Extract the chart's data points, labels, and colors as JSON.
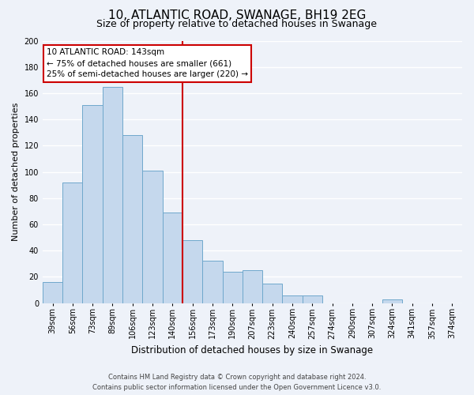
{
  "title": "10, ATLANTIC ROAD, SWANAGE, BH19 2EG",
  "subtitle": "Size of property relative to detached houses in Swanage",
  "xlabel": "Distribution of detached houses by size in Swanage",
  "ylabel": "Number of detached properties",
  "categories": [
    "39sqm",
    "56sqm",
    "73sqm",
    "89sqm",
    "106sqm",
    "123sqm",
    "140sqm",
    "156sqm",
    "173sqm",
    "190sqm",
    "207sqm",
    "223sqm",
    "240sqm",
    "257sqm",
    "274sqm",
    "290sqm",
    "307sqm",
    "324sqm",
    "341sqm",
    "357sqm",
    "374sqm"
  ],
  "values": [
    16,
    92,
    151,
    165,
    128,
    101,
    69,
    48,
    32,
    24,
    25,
    15,
    6,
    6,
    0,
    0,
    0,
    3,
    0,
    0,
    0
  ],
  "bar_color": "#c5d8ed",
  "bar_edge_color": "#6fa8cc",
  "vline_x_index": 6,
  "vline_color": "#cc0000",
  "annotation_title": "10 ATLANTIC ROAD: 143sqm",
  "annotation_line1": "← 75% of detached houses are smaller (661)",
  "annotation_line2": "25% of semi-detached houses are larger (220) →",
  "annotation_box_color": "#ffffff",
  "annotation_box_edge_color": "#cc0000",
  "ylim": [
    0,
    200
  ],
  "yticks": [
    0,
    20,
    40,
    60,
    80,
    100,
    120,
    140,
    160,
    180,
    200
  ],
  "footer_line1": "Contains HM Land Registry data © Crown copyright and database right 2024.",
  "footer_line2": "Contains public sector information licensed under the Open Government Licence v3.0.",
  "background_color": "#eef2f9",
  "plot_bg_color": "#eef2f9",
  "grid_color": "#ffffff",
  "title_fontsize": 11,
  "subtitle_fontsize": 9,
  "xlabel_fontsize": 8.5,
  "ylabel_fontsize": 8,
  "tick_fontsize": 7,
  "annotation_fontsize": 7.5,
  "footer_fontsize": 6
}
